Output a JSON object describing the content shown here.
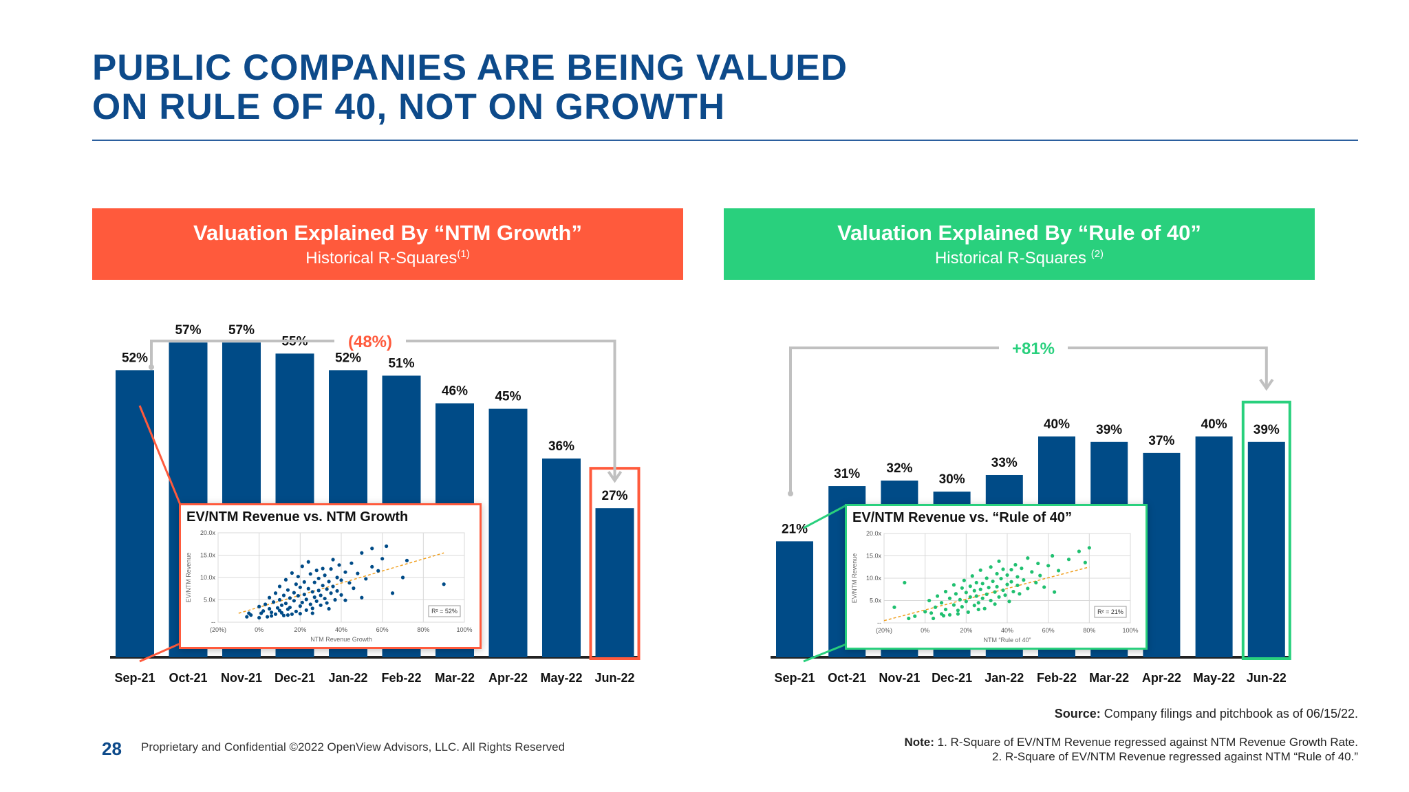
{
  "title": {
    "line1": "PUBLIC COMPANIES ARE BEING VALUED",
    "line2": "ON RULE OF 40, NOT ON GROWTH"
  },
  "colors": {
    "navy": "#0d4a8a",
    "bar": "#004b87",
    "red": "#ff5a3c",
    "green": "#29d07d",
    "bracket": "#c0c0c0"
  },
  "left_panel": {
    "banner_title": "Valuation Explained By “NTM Growth”",
    "banner_subtitle": "Historical R-Squares",
    "banner_sup": "(1)"
  },
  "right_panel": {
    "banner_title": "Valuation Explained By “Rule of 40”",
    "banner_subtitle": "Historical R-Squares",
    "banner_sup": "(2)"
  },
  "chart_data": [
    {
      "type": "bar",
      "title": "",
      "categories": [
        "Sep-21",
        "Oct-21",
        "Nov-21",
        "Dec-21",
        "Jan-22",
        "Feb-22",
        "Mar-22",
        "Apr-22",
        "May-22",
        "Jun-22"
      ],
      "values": [
        52,
        57,
        57,
        55,
        52,
        51,
        46,
        45,
        36,
        27
      ],
      "value_labels": [
        "52%",
        "57%",
        "57%",
        "55%",
        "52%",
        "51%",
        "46%",
        "45%",
        "36%",
        "27%"
      ],
      "change_label": "(48%)",
      "highlight_last": true,
      "ylim": [
        0,
        65
      ],
      "inset": {
        "type": "scatter",
        "title": "EV/NTM Revenue vs. NTM Growth",
        "xlabel": "NTM Revenue Growth",
        "ylabel": "EV/NTM Revenue",
        "xticks": [
          "(20%)",
          "0%",
          "20%",
          "40%",
          "60%",
          "80%",
          "100%"
        ],
        "yticks": [
          "--",
          "5.0x",
          "10.0x",
          "15.0x",
          "20.0x"
        ],
        "xlim": [
          -20,
          100
        ],
        "ylim": [
          0,
          20
        ],
        "r2_label": "R² = 52%",
        "trend": [
          [
            -10,
            2.0
          ],
          [
            90,
            15.5
          ]
        ],
        "points": [
          [
            -5,
            2.0
          ],
          [
            -4,
            1.6
          ],
          [
            0,
            1.0
          ],
          [
            0,
            3.5
          ],
          [
            2,
            2.5
          ],
          [
            3,
            4.0
          ],
          [
            4,
            1.2
          ],
          [
            5,
            3.0
          ],
          [
            5,
            5.5
          ],
          [
            6,
            2.2
          ],
          [
            7,
            4.5
          ],
          [
            8,
            1.8
          ],
          [
            8,
            6.5
          ],
          [
            9,
            3.2
          ],
          [
            10,
            2.6
          ],
          [
            10,
            5.0
          ],
          [
            10,
            8.0
          ],
          [
            11,
            3.8
          ],
          [
            12,
            1.5
          ],
          [
            12,
            6.0
          ],
          [
            13,
            4.2
          ],
          [
            13,
            9.5
          ],
          [
            14,
            2.9
          ],
          [
            14,
            7.2
          ],
          [
            15,
            5.4
          ],
          [
            15,
            3.3
          ],
          [
            16,
            11.0
          ],
          [
            16,
            1.8
          ],
          [
            17,
            6.6
          ],
          [
            17,
            4.8
          ],
          [
            18,
            8.5
          ],
          [
            18,
            2.4
          ],
          [
            19,
            5.9
          ],
          [
            19,
            10.2
          ],
          [
            20,
            3.6
          ],
          [
            20,
            7.8
          ],
          [
            21,
            12.5
          ],
          [
            21,
            4.4
          ],
          [
            22,
            6.2
          ],
          [
            22,
            9.0
          ],
          [
            23,
            2.7
          ],
          [
            23,
            5.1
          ],
          [
            24,
            7.5
          ],
          [
            24,
            13.5
          ],
          [
            25,
            4.0
          ],
          [
            25,
            10.8
          ],
          [
            26,
            6.8
          ],
          [
            26,
            3.1
          ],
          [
            27,
            8.9
          ],
          [
            27,
            5.6
          ],
          [
            28,
            11.6
          ],
          [
            28,
            4.7
          ],
          [
            29,
            7.1
          ],
          [
            29,
            9.8
          ],
          [
            30,
            6.0
          ],
          [
            30,
            3.8
          ],
          [
            31,
            12.0
          ],
          [
            31,
            8.2
          ],
          [
            32,
            5.3
          ],
          [
            32,
            10.5
          ],
          [
            33,
            7.4
          ],
          [
            33,
            4.3
          ],
          [
            34,
            9.1
          ],
          [
            35,
            6.5
          ],
          [
            35,
            11.9
          ],
          [
            36,
            14.0
          ],
          [
            36,
            8.0
          ],
          [
            37,
            5.0
          ],
          [
            38,
            10.0
          ],
          [
            38,
            7.0
          ],
          [
            39,
            12.8
          ],
          [
            40,
            6.1
          ],
          [
            40,
            9.4
          ],
          [
            42,
            11.2
          ],
          [
            42,
            4.9
          ],
          [
            44,
            8.8
          ],
          [
            45,
            13.2
          ],
          [
            46,
            7.6
          ],
          [
            48,
            10.9
          ],
          [
            50,
            15.5
          ],
          [
            50,
            5.5
          ],
          [
            52,
            9.7
          ],
          [
            55,
            12.4
          ],
          [
            55,
            16.5
          ],
          [
            58,
            11.5
          ],
          [
            60,
            14.2
          ],
          [
            62,
            17.0
          ],
          [
            65,
            6.5
          ],
          [
            70,
            10.0
          ],
          [
            72,
            13.8
          ],
          [
            90,
            8.5
          ],
          [
            -6,
            1.2
          ],
          [
            1,
            2.0
          ],
          [
            6,
            1.4
          ],
          [
            11,
            2.1
          ],
          [
            14,
            1.6
          ],
          [
            20,
            1.9
          ],
          [
            26,
            2.0
          ],
          [
            34,
            3.0
          ]
        ]
      }
    },
    {
      "type": "bar",
      "title": "",
      "categories": [
        "Sep-21",
        "Oct-21",
        "Nov-21",
        "Dec-21",
        "Jan-22",
        "Feb-22",
        "Mar-22",
        "Apr-22",
        "May-22",
        "Jun-22"
      ],
      "values": [
        21,
        31,
        32,
        30,
        33,
        40,
        39,
        37,
        40,
        39
      ],
      "value_labels": [
        "21%",
        "31%",
        "32%",
        "30%",
        "33%",
        "40%",
        "39%",
        "37%",
        "40%",
        "39%"
      ],
      "change_label": "+81%",
      "highlight_last": true,
      "ylim": [
        0,
        65
      ],
      "inset": {
        "type": "scatter",
        "title": "EV/NTM Revenue vs. “Rule of 40”",
        "xlabel": "NTM “Rule of 40”",
        "ylabel": "EV/NTM Revenue",
        "xticks": [
          "(20%)",
          "0%",
          "20%",
          "40%",
          "60%",
          "80%",
          "100%"
        ],
        "yticks": [
          "--",
          "5.0x",
          "10.0x",
          "15.0x",
          "20.0x"
        ],
        "xlim": [
          -20,
          100
        ],
        "ylim": [
          0,
          20
        ],
        "r2_label": "R² = 21%",
        "trend": [
          [
            -20,
            0.5
          ],
          [
            80,
            12.5
          ]
        ],
        "points": [
          [
            -15,
            3.5
          ],
          [
            -10,
            9.0
          ],
          [
            -5,
            1.5
          ],
          [
            0,
            2.5
          ],
          [
            2,
            5.0
          ],
          [
            4,
            1.0
          ],
          [
            5,
            3.5
          ],
          [
            6,
            6.0
          ],
          [
            8,
            2.0
          ],
          [
            8,
            4.5
          ],
          [
            10,
            3.0
          ],
          [
            10,
            7.0
          ],
          [
            12,
            5.5
          ],
          [
            12,
            1.8
          ],
          [
            14,
            4.0
          ],
          [
            14,
            8.5
          ],
          [
            15,
            6.5
          ],
          [
            16,
            2.8
          ],
          [
            17,
            5.2
          ],
          [
            18,
            7.8
          ],
          [
            18,
            3.6
          ],
          [
            19,
            9.5
          ],
          [
            20,
            4.8
          ],
          [
            20,
            6.8
          ],
          [
            21,
            2.4
          ],
          [
            22,
            8.2
          ],
          [
            22,
            5.8
          ],
          [
            23,
            10.5
          ],
          [
            24,
            3.9
          ],
          [
            24,
            7.2
          ],
          [
            25,
            6.0
          ],
          [
            25,
            9.0
          ],
          [
            26,
            4.5
          ],
          [
            27,
            11.8
          ],
          [
            27,
            7.5
          ],
          [
            28,
            5.5
          ],
          [
            28,
            8.8
          ],
          [
            29,
            3.2
          ],
          [
            30,
            6.4
          ],
          [
            30,
            10.0
          ],
          [
            31,
            7.9
          ],
          [
            32,
            12.5
          ],
          [
            32,
            5.0
          ],
          [
            33,
            9.3
          ],
          [
            34,
            6.9
          ],
          [
            34,
            4.2
          ],
          [
            35,
            11.0
          ],
          [
            35,
            8.1
          ],
          [
            36,
            13.8
          ],
          [
            36,
            5.8
          ],
          [
            37,
            9.9
          ],
          [
            38,
            7.3
          ],
          [
            38,
            12.0
          ],
          [
            39,
            6.2
          ],
          [
            40,
            10.7
          ],
          [
            40,
            8.6
          ],
          [
            41,
            4.8
          ],
          [
            42,
            11.9
          ],
          [
            42,
            9.2
          ],
          [
            43,
            7.0
          ],
          [
            44,
            13.0
          ],
          [
            45,
            8.4
          ],
          [
            45,
            10.3
          ],
          [
            46,
            6.5
          ],
          [
            47,
            12.2
          ],
          [
            48,
            9.6
          ],
          [
            50,
            14.5
          ],
          [
            50,
            7.7
          ],
          [
            52,
            11.4
          ],
          [
            54,
            9.0
          ],
          [
            55,
            13.3
          ],
          [
            56,
            10.6
          ],
          [
            58,
            8.0
          ],
          [
            60,
            12.8
          ],
          [
            62,
            15.0
          ],
          [
            63,
            6.9
          ],
          [
            65,
            11.7
          ],
          [
            70,
            14.2
          ],
          [
            75,
            16.0
          ],
          [
            78,
            13.5
          ],
          [
            80,
            16.8
          ],
          [
            -8,
            1.0
          ],
          [
            3,
            2.2
          ],
          [
            9,
            1.6
          ],
          [
            16,
            2.0
          ],
          [
            26,
            3.0
          ]
        ]
      }
    }
  ],
  "source": {
    "label": "Source:",
    "text": " Company filings and pitchbook as of 06/15/22."
  },
  "note": {
    "label": "Note:",
    "line1": " 1. R-Square of EV/NTM Revenue regressed against NTM Revenue Growth Rate.",
    "line2": "2. R-Square of EV/NTM Revenue regressed against NTM “Rule of 40.”"
  },
  "footer": {
    "page_number": "28",
    "text": "Proprietary and Confidential ©2022 OpenView Advisors, LLC. All Rights Reserved"
  }
}
